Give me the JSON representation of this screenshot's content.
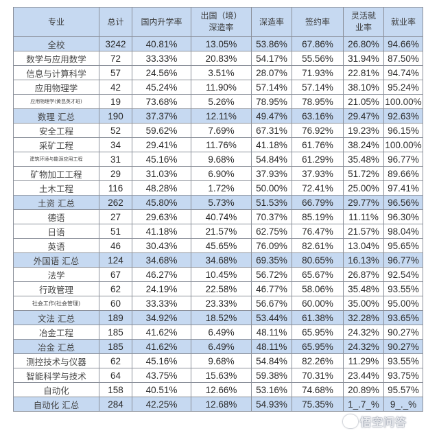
{
  "table": {
    "headers": {
      "major": "专业",
      "total": "总计",
      "domestic_rate": "国内升学率",
      "abroad_rate_line1": "出国（境）",
      "abroad_rate_line2": "深造率",
      "further_study_rate": "深造率",
      "contract_rate": "签约率",
      "flexible_rate_line1": "灵活就",
      "flexible_rate_line2": "业率",
      "employment_rate": "就业率"
    },
    "rows": [
      {
        "major": "全校",
        "total": "3242",
        "domestic": "40.81%",
        "abroad": "13.05%",
        "further": "53.86%",
        "contract": "67.86%",
        "flexible": "26.80%",
        "employment": "94.66%"
      },
      {
        "major": "数学与应用数学",
        "total": "72",
        "domestic": "33.33%",
        "abroad": "20.83%",
        "further": "54.17%",
        "contract": "55.56%",
        "flexible": "31.94%",
        "employment": "87.50%"
      },
      {
        "major": "信息与计算科学",
        "total": "57",
        "domestic": "24.56%",
        "abroad": "3.51%",
        "further": "28.07%",
        "contract": "71.93%",
        "flexible": "22.81%",
        "employment": "94.74%"
      },
      {
        "major": "应用物理学",
        "total": "42",
        "domestic": "45.24%",
        "abroad": "11.90%",
        "further": "57.14%",
        "contract": "57.14%",
        "flexible": "38.10%",
        "employment": "95.24%"
      },
      {
        "major": "应用物理学(黄昆英才班)",
        "total": "19",
        "domestic": "73.68%",
        "abroad": "5.26%",
        "further": "78.95%",
        "contract": "78.95%",
        "flexible": "21.05%",
        "employment": "100.00%"
      },
      {
        "major": "数理 汇总",
        "total": "190",
        "domestic": "37.37%",
        "abroad": "12.11%",
        "further": "49.47%",
        "contract": "63.16%",
        "flexible": "29.47%",
        "employment": "92.63%"
      },
      {
        "major": "安全工程",
        "total": "52",
        "domestic": "59.62%",
        "abroad": "7.69%",
        "further": "67.31%",
        "contract": "76.92%",
        "flexible": "19.23%",
        "employment": "96.15%"
      },
      {
        "major": "采矿工程",
        "total": "34",
        "domestic": "29.41%",
        "abroad": "11.76%",
        "further": "41.18%",
        "contract": "61.76%",
        "flexible": "38.24%",
        "employment": "100.00%"
      },
      {
        "major": "建筑环境与能源应用工程",
        "total": "31",
        "domestic": "45.16%",
        "abroad": "9.68%",
        "further": "54.84%",
        "contract": "61.29%",
        "flexible": "35.48%",
        "employment": "96.77%"
      },
      {
        "major": "矿物加工工程",
        "total": "29",
        "domestic": "31.03%",
        "abroad": "6.90%",
        "further": "37.93%",
        "contract": "37.93%",
        "flexible": "51.72%",
        "employment": "89.66%"
      },
      {
        "major": "土木工程",
        "total": "116",
        "domestic": "48.28%",
        "abroad": "1.72%",
        "further": "50.00%",
        "contract": "72.41%",
        "flexible": "25.00%",
        "employment": "97.41%"
      },
      {
        "major": "土资 汇总",
        "total": "262",
        "domestic": "45.80%",
        "abroad": "5.73%",
        "further": "51.53%",
        "contract": "66.79%",
        "flexible": "29.77%",
        "employment": "96.56%"
      },
      {
        "major": "德语",
        "total": "27",
        "domestic": "29.63%",
        "abroad": "40.74%",
        "further": "70.37%",
        "contract": "85.19%",
        "flexible": "11.11%",
        "employment": "96.30%"
      },
      {
        "major": "日语",
        "total": "51",
        "domestic": "41.18%",
        "abroad": "21.57%",
        "further": "62.75%",
        "contract": "76.47%",
        "flexible": "21.57%",
        "employment": "98.04%"
      },
      {
        "major": "英语",
        "total": "46",
        "domestic": "30.43%",
        "abroad": "45.65%",
        "further": "76.09%",
        "contract": "82.61%",
        "flexible": "13.04%",
        "employment": "95.65%"
      },
      {
        "major": "外国语 汇总",
        "total": "124",
        "domestic": "34.68%",
        "abroad": "34.68%",
        "further": "69.35%",
        "contract": "80.65%",
        "flexible": "16.13%",
        "employment": "96.77%"
      },
      {
        "major": "法学",
        "total": "67",
        "domestic": "46.27%",
        "abroad": "10.45%",
        "further": "56.72%",
        "contract": "65.67%",
        "flexible": "26.87%",
        "employment": "92.54%"
      },
      {
        "major": "行政管理",
        "total": "62",
        "domestic": "24.19%",
        "abroad": "22.58%",
        "further": "46.77%",
        "contract": "58.06%",
        "flexible": "35.48%",
        "employment": "93.55%"
      },
      {
        "major": "社会工作(社会管理)",
        "total": "60",
        "domestic": "33.33%",
        "abroad": "23.33%",
        "further": "56.67%",
        "contract": "60.00%",
        "flexible": "35.00%",
        "employment": "95.00%"
      },
      {
        "major": "文法 汇总",
        "total": "189",
        "domestic": "34.92%",
        "abroad": "18.52%",
        "further": "53.44%",
        "contract": "61.38%",
        "flexible": "32.28%",
        "employment": "93.65%"
      },
      {
        "major": "冶金工程",
        "total": "185",
        "domestic": "41.62%",
        "abroad": "6.49%",
        "further": "48.11%",
        "contract": "65.95%",
        "flexible": "24.32%",
        "employment": "90.27%"
      },
      {
        "major": "冶金 汇总",
        "total": "185",
        "domestic": "41.62%",
        "abroad": "6.49%",
        "further": "48.11%",
        "contract": "65.95%",
        "flexible": "24.32%",
        "employment": "90.27%"
      },
      {
        "major": "测控技术与仪器",
        "total": "62",
        "domestic": "45.16%",
        "abroad": "9.68%",
        "further": "54.84%",
        "contract": "82.26%",
        "flexible": "11.29%",
        "employment": "93.55%"
      },
      {
        "major": "智能科学与技术",
        "total": "64",
        "domestic": "43.75%",
        "abroad": "15.63%",
        "further": "59.38%",
        "contract": "70.31%",
        "flexible": "23.44%",
        "employment": "93.75%"
      },
      {
        "major": "自动化",
        "total": "158",
        "domestic": "40.51%",
        "abroad": "12.66%",
        "further": "53.16%",
        "contract": "74.68%",
        "flexible": "20.89%",
        "employment": "95.57%"
      },
      {
        "major": "自动化 汇总",
        "total": "284",
        "domestic": "42.25%",
        "abroad": "12.68%",
        "further": "54.93%",
        "contract": "75.35%",
        "flexible": "1_.7_%",
        "employment": "9_._%"
      }
    ]
  },
  "watermark": {
    "text": "悟空问答",
    "icon": "wukong-logo-icon"
  },
  "colors": {
    "header_bg": "#c6d9f1",
    "summary_bg": "#c6d9f1",
    "border": "#8a8f99",
    "text": "#2a2a2a"
  }
}
